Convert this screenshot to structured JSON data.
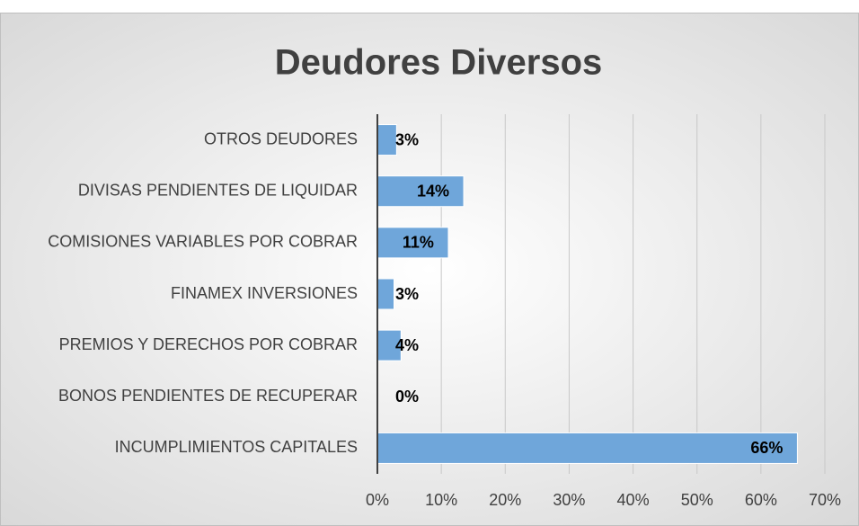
{
  "chart_data": {
    "type": "barh",
    "title": "Deudores Diversos",
    "categories": [
      "OTROS DEUDORES",
      "DIVISAS PENDIENTES DE LIQUIDAR",
      "COMISIONES VARIABLES POR COBRAR",
      "FINAMEX INVERSIONES",
      "PREMIOS Y DERECHOS POR COBRAR",
      "BONOS PENDIENTES DE RECUPERAR",
      "INCUMPLIMIENTOS CAPITALES"
    ],
    "values": [
      3,
      13.5,
      11.1,
      2.6,
      3.7,
      0,
      65.7
    ],
    "value_labels": [
      "3%",
      "14%",
      "11%",
      "3%",
      "4%",
      "0%",
      "66%"
    ],
    "color": "#6fa6da",
    "xlim": [
      0,
      70
    ],
    "xticks": [
      {
        "value": 0,
        "label": "0%"
      },
      {
        "value": 10,
        "label": "10%"
      },
      {
        "value": 20,
        "label": "20%"
      },
      {
        "value": 30,
        "label": "30%"
      },
      {
        "value": 40,
        "label": "40%"
      },
      {
        "value": 50,
        "label": "50%"
      },
      {
        "value": 60,
        "label": "60%"
      },
      {
        "value": 70,
        "label": "70%"
      }
    ],
    "grid": true
  }
}
